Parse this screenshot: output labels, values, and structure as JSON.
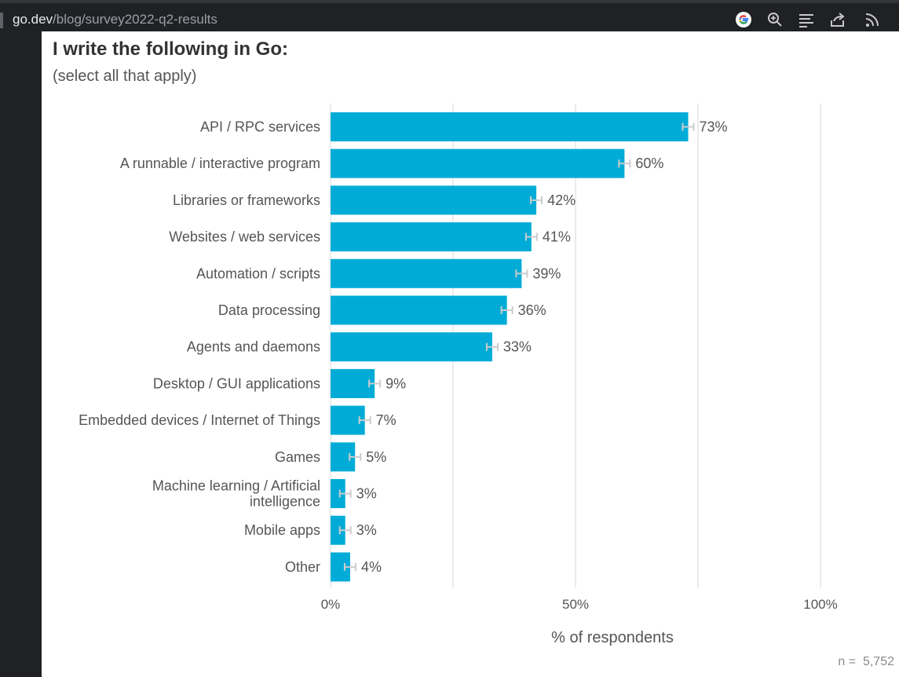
{
  "browser": {
    "url_host": "go.dev",
    "url_path": "/blog/survey2022-q2-results",
    "toolbar_icons": [
      "google-icon",
      "zoom-icon",
      "reader-mode-icon",
      "share-icon",
      "rss-icon"
    ]
  },
  "chart_data": {
    "type": "bar",
    "orientation": "horizontal",
    "title": "I write the following in Go:",
    "subtitle": "(select all that apply)",
    "categories": [
      "API / RPC services",
      "A runnable / interactive program",
      "Libraries or frameworks",
      "Websites / web services",
      "Automation / scripts",
      "Data processing",
      "Agents and daemons",
      "Desktop / GUI applications",
      "Embedded devices / Internet of Things",
      "Games",
      "Machine learning / Artificial intelligence",
      "Mobile apps",
      "Other"
    ],
    "values": [
      73,
      60,
      42,
      41,
      39,
      36,
      33,
      9,
      7,
      5,
      3,
      3,
      4
    ],
    "value_labels": [
      "73%",
      "60%",
      "42%",
      "41%",
      "39%",
      "36%",
      "33%",
      "9%",
      "7%",
      "5%",
      "3%",
      "3%",
      "4%"
    ],
    "xlabel": "% of respondents",
    "ylabel": "",
    "xlim": [
      0,
      100
    ],
    "xticks": [
      0,
      50,
      100
    ],
    "xtick_labels": [
      "0%",
      "50%",
      "100%"
    ],
    "gridlines": [
      0,
      25,
      50,
      75,
      100
    ],
    "grid": true,
    "error_bars": true,
    "bar_color": "#00acd7",
    "error_bar_color": "#cccccc",
    "note": "n =  5,752"
  }
}
